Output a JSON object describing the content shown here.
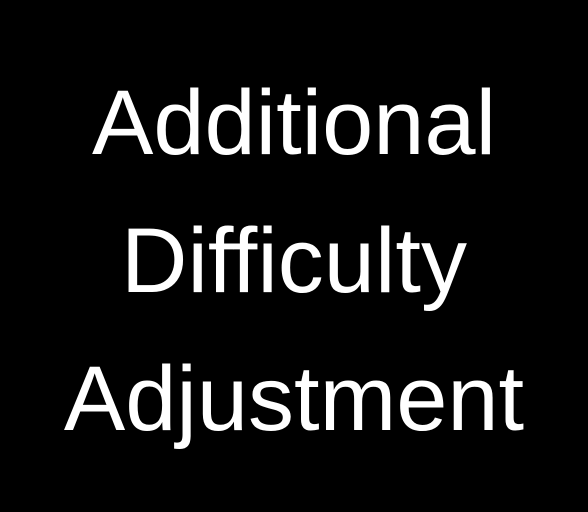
{
  "slide": {
    "title_lines": [
      "Additional",
      "Difficulty",
      "Adjustment"
    ]
  },
  "colors": {
    "background": "#000000",
    "text": "#ffffff"
  }
}
